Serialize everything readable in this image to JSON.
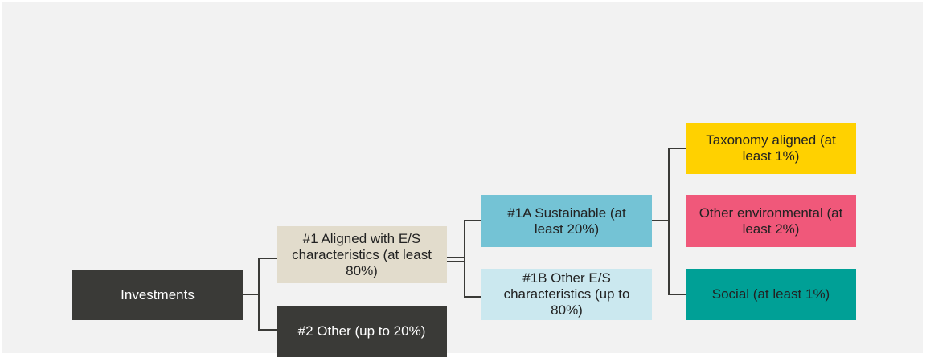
{
  "nodes": [
    {
      "label": "Investments"
    },
    {
      "label": "#1 Aligned with E/S characteristics (at least 80%)"
    },
    {
      "label": "#2 Other (up to 20%)"
    },
    {
      "label": "#1A Sustainable (at least 20%)"
    },
    {
      "label": "#1B Other E/S characteristics (up to 80%)"
    },
    {
      "label": "Taxonomy aligned (at least 1%)"
    },
    {
      "label": "Other environmental (at least 2%)"
    },
    {
      "label": "Social (at least 1%)"
    }
  ]
}
